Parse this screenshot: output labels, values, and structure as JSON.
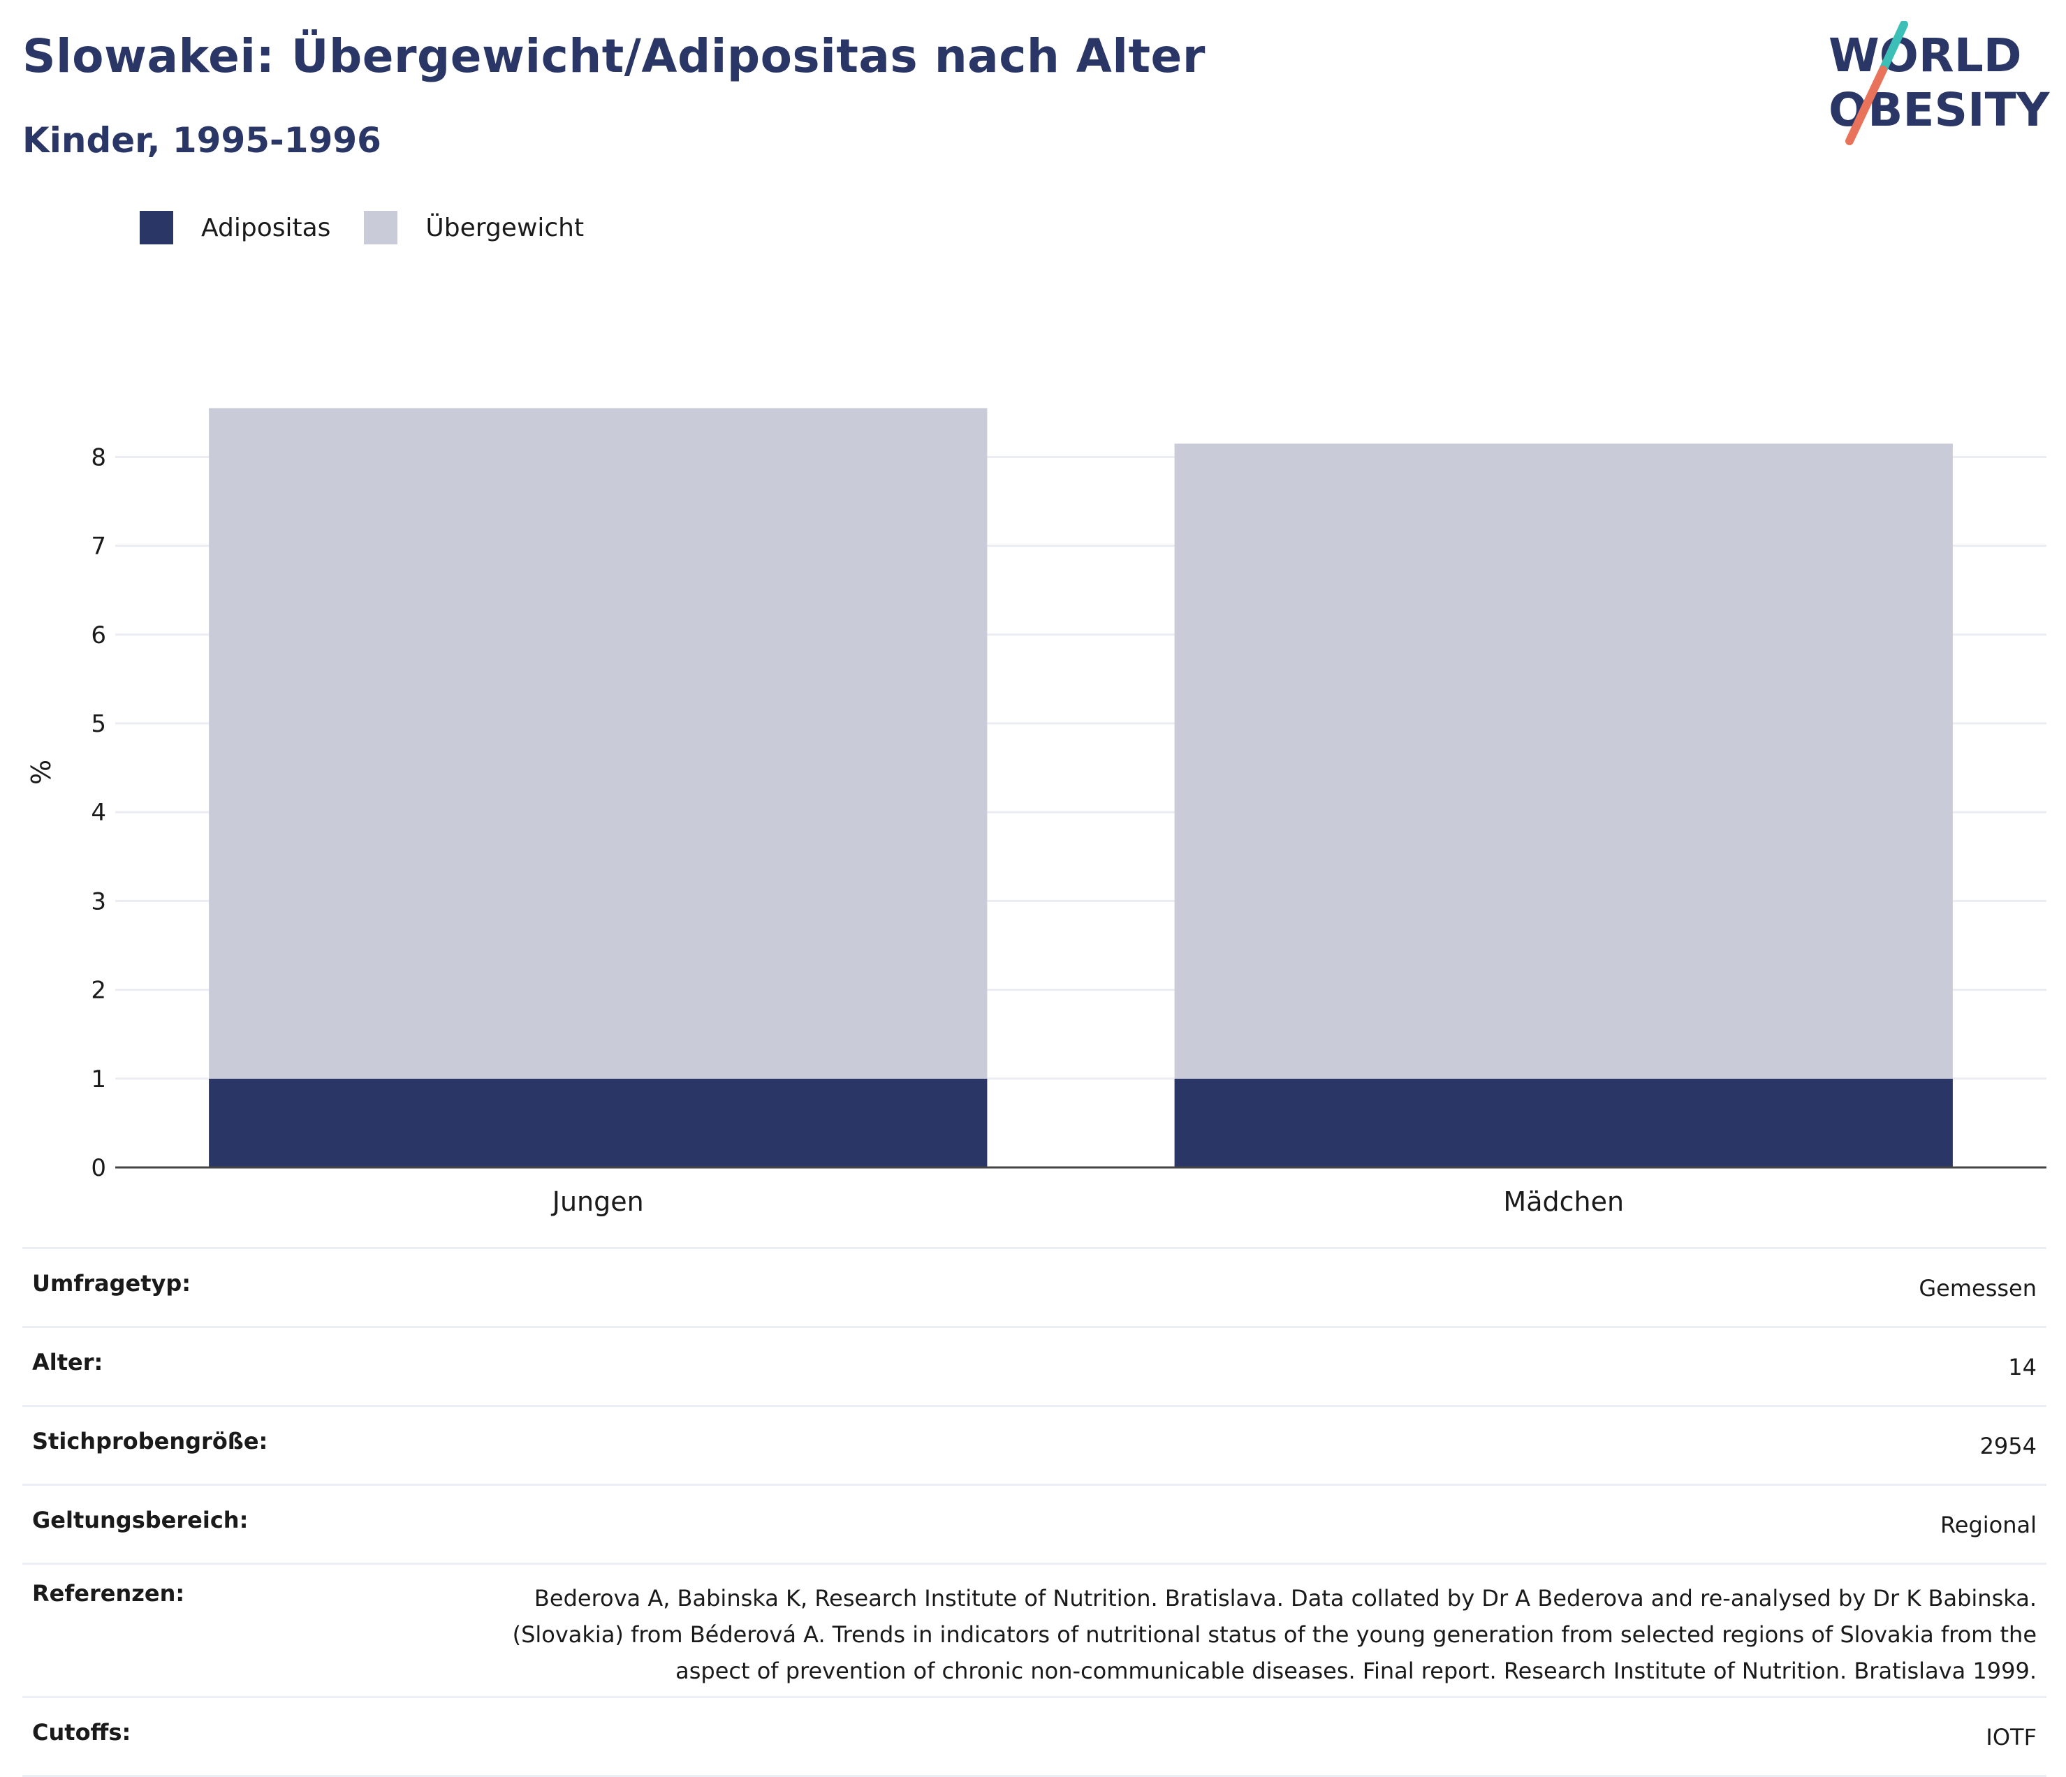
{
  "header": {
    "title": "Slowakei: Übergewicht/Adipositas nach Alter",
    "subtitle": "Kinder, 1995-1996"
  },
  "logo": {
    "line1": "WORLD",
    "line2": "OBESITY"
  },
  "colors": {
    "adipositas": "#2a3766",
    "uebergewicht": "#c9ccd8",
    "title": "#2a3766",
    "logo_teal": "#3bbfb7",
    "logo_coral": "#e8735a"
  },
  "chart_data": {
    "type": "bar",
    "stacked": true,
    "categories": [
      "Jungen",
      "Mädchen"
    ],
    "series": [
      {
        "name": "Adipositas",
        "values": [
          1.0,
          1.0
        ]
      },
      {
        "name": "Übergewicht",
        "values": [
          7.55,
          7.15
        ]
      }
    ],
    "ylabel": "%",
    "ylim": [
      0,
      8.9
    ],
    "yticks": [
      "0",
      "1",
      "2",
      "3",
      "4",
      "5",
      "6",
      "7",
      "8"
    ],
    "grid": true,
    "legend_position": "top-left"
  },
  "info": [
    {
      "key": "Umfragetyp:",
      "value": "Gemessen"
    },
    {
      "key": "Alter:",
      "value": "14"
    },
    {
      "key": "Stichprobengröße:",
      "value": "2954"
    },
    {
      "key": "Geltungsbereich:",
      "value": "Regional"
    },
    {
      "key": "Referenzen:",
      "value": "Bederova A, Babinska K, Research Institute of Nutrition. Bratislava. Data collated by Dr A Bederova and re-analysed by Dr K Babinska. (Slovakia) from Béderová A. Trends in indicators of nutritional status of the young generation from selected regions of Slovakia from the aspect of prevention of chronic non-communicable diseases. Final report. Research Institute of Nutrition. Bratislava 1999."
    },
    {
      "key": "Cutoffs:",
      "value": "IOTF"
    }
  ]
}
